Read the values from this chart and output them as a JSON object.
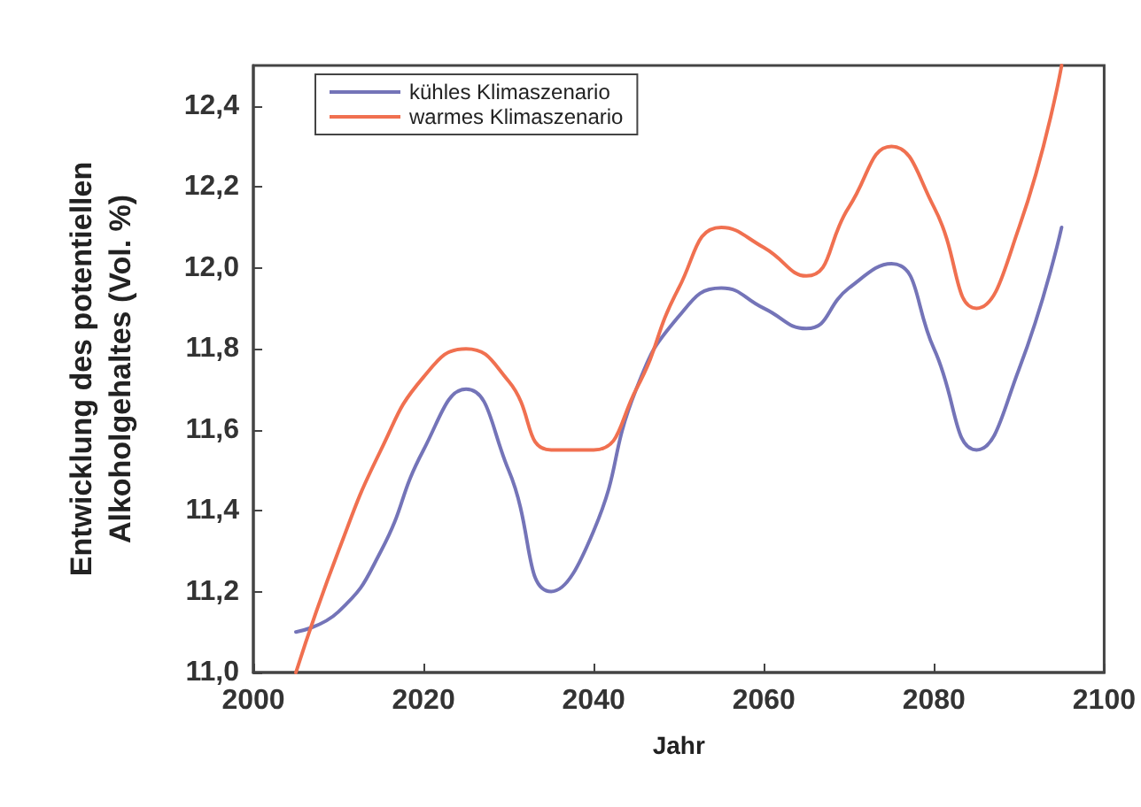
{
  "chart_data": {
    "type": "line",
    "xlabel": "Jahr",
    "ylabel": "Entwicklung des potentiellen\nAlkoholgehaltes (Vol. %)",
    "x": [
      2005,
      2010,
      2015,
      2020,
      2025,
      2030,
      2035,
      2040,
      2045,
      2050,
      2055,
      2060,
      2065,
      2070,
      2075,
      2080,
      2085,
      2090,
      2095
    ],
    "series": [
      {
        "name": "kühles Klimaszenario",
        "color": "#7474b8",
        "values": [
          11.1,
          11.15,
          11.3,
          11.55,
          11.7,
          11.5,
          11.2,
          11.35,
          11.7,
          11.88,
          11.95,
          11.9,
          11.85,
          11.95,
          12.01,
          11.8,
          11.55,
          11.75,
          12.1
        ]
      },
      {
        "name": "warmes Klimaszenario",
        "color": "#f07050",
        "values": [
          11.0,
          11.3,
          11.55,
          11.73,
          11.8,
          11.72,
          11.55,
          11.55,
          11.7,
          11.95,
          12.1,
          12.05,
          11.98,
          12.15,
          12.3,
          12.15,
          11.9,
          12.1,
          12.5
        ]
      }
    ],
    "xlim": [
      2000,
      2100
    ],
    "xticks": [
      2000,
      2020,
      2040,
      2060,
      2080,
      2100
    ],
    "ylim": [
      11.0,
      12.5
    ],
    "yticks": [
      {
        "value": 11.0,
        "label": "11,0"
      },
      {
        "value": 11.2,
        "label": "11,2"
      },
      {
        "value": 11.4,
        "label": "11,4"
      },
      {
        "value": 11.6,
        "label": "11,6"
      },
      {
        "value": 11.8,
        "label": "11,8"
      },
      {
        "value": 12.0,
        "label": "12,0"
      },
      {
        "value": 12.2,
        "label": "12,2"
      },
      {
        "value": 12.4,
        "label": "12,4"
      }
    ],
    "grid": false,
    "legend": "top left",
    "marker": "none",
    "line_style": "solid"
  }
}
